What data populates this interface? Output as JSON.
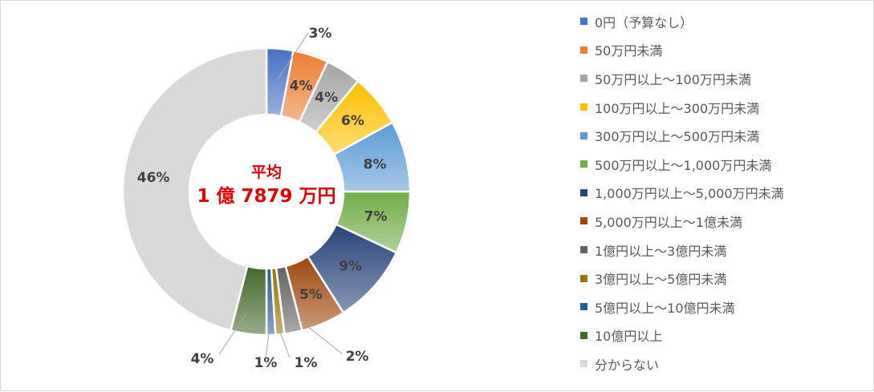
{
  "chart_data": {
    "type": "donut",
    "center": {
      "title": "平均",
      "value": "1 億 7879 万円"
    },
    "categories": [
      "0円（予算なし）",
      "50万円未満",
      "50万円以上～100万円未満",
      "100万円以上～300万円未満",
      "300万円以上～500万円未満",
      "500万円以上～1,000万円未満",
      "1,000万円以上～5,000万円未満",
      "5,000万円以上～1億未満",
      "1億円以上～3億円未満",
      "3億円以上～5億円未満",
      "5億円以上～10億円未満",
      "10億円以上",
      "分からない"
    ],
    "values": [
      3,
      4,
      4,
      6,
      8,
      7,
      9,
      5,
      2,
      1,
      1,
      4,
      46
    ],
    "labels": [
      "3%",
      "4%",
      "4%",
      "6%",
      "8%",
      "7%",
      "9%",
      "5%",
      "2%",
      "1%",
      "1%",
      "4%",
      "46%"
    ],
    "colors": [
      "#4472c4",
      "#ed7d31",
      "#a5a5a5",
      "#ffc000",
      "#5b9bd5",
      "#70ad47",
      "#264478",
      "#9e480e",
      "#636363",
      "#997300",
      "#255e91",
      "#43682b",
      "#d9d9d9"
    ],
    "legend_position": "right"
  }
}
